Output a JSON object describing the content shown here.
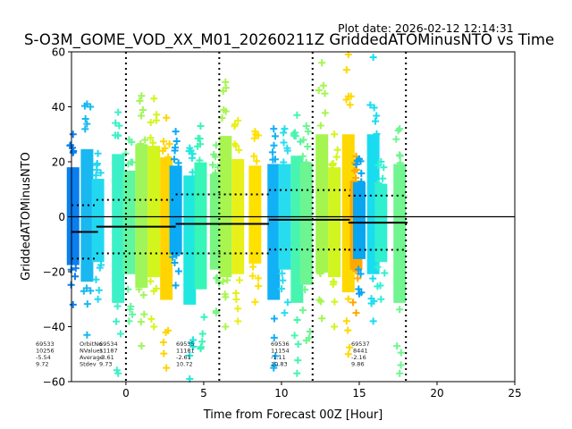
{
  "chart_data": {
    "type": "scatter",
    "title": "S-O3M_GOME_VOD_XX_M01_20260211Z GriddedATOMinusNTO vs Time",
    "plot_date": "Plot date: 2026-02-12 12:14:31",
    "xlabel": "Time from Forecast 00Z [Hour]",
    "ylabel": "GriddedATOMinusNTO",
    "xlim": [
      -3.5,
      25
    ],
    "ylim": [
      -60,
      60
    ],
    "xticks": [
      0,
      5,
      10,
      15,
      20,
      25
    ],
    "xtick_labels": [
      "0",
      "5",
      "10",
      "15",
      "20",
      "25"
    ],
    "yticks": [
      -60,
      -40,
      -20,
      0,
      20,
      40,
      60
    ],
    "ytick_labels": [
      "−60",
      "−40",
      "−20",
      "0",
      "20",
      "40",
      "60"
    ],
    "grid": false,
    "zero_line": 0,
    "vertical_dotted_lines": [
      0,
      6,
      12,
      18
    ],
    "stats_header": [
      "OrbitNo",
      "NValues",
      "Average",
      "Stdev"
    ],
    "orbits": [
      {
        "orbit": "69533",
        "nvalues": "10256",
        "average": "-5.54",
        "stdev": "9.72",
        "mean": -5.54,
        "std": 9.72,
        "x_start": -3.5,
        "x_end": -1.8
      },
      {
        "orbit": "69534",
        "nvalues": "11187",
        "average": "-3.61",
        "stdev": "9.73",
        "mean": -3.61,
        "std": 9.73,
        "x_start": -1.9,
        "x_end": 3.2
      },
      {
        "orbit": "69535",
        "nvalues": "11181",
        "average": "-2.61",
        "stdev": "10.72",
        "mean": -2.61,
        "std": 10.72,
        "x_start": 3.2,
        "x_end": 9.2
      },
      {
        "orbit": "69536",
        "nvalues": "11154",
        "average": "-1.11",
        "stdev": "10.83",
        "mean": -1.11,
        "std": 10.83,
        "x_start": 9.2,
        "x_end": 14.4
      },
      {
        "orbit": "69537",
        "nvalues": "8441",
        "average": "-2.16",
        "stdev": "9.86",
        "mean": -2.16,
        "std": 9.86,
        "x_start": 14.3,
        "x_end": 18.1
      }
    ],
    "scan_bands": [
      {
        "x": -3.4,
        "color": "#0a7ff0",
        "lo": -32,
        "hi": 30
      },
      {
        "x": -2.5,
        "color": "#1ab8f0",
        "lo": -43,
        "hi": 41
      },
      {
        "x": -1.8,
        "color": "#22d8f0",
        "lo": -30,
        "hi": 23
      },
      {
        "x": -0.5,
        "color": "#3cf0c8",
        "lo": -57,
        "hi": 38
      },
      {
        "x": 0.2,
        "color": "#60f5a0",
        "lo": -38,
        "hi": 28
      },
      {
        "x": 1.0,
        "color": "#a0f55a",
        "lo": -47,
        "hi": 44
      },
      {
        "x": 1.8,
        "color": "#d2f51e",
        "lo": -40,
        "hi": 43
      },
      {
        "x": 2.6,
        "color": "#ffd400",
        "lo": -55,
        "hi": 36
      },
      {
        "x": 3.2,
        "color": "#0aaaf5",
        "lo": -25,
        "hi": 31
      },
      {
        "x": 4.1,
        "color": "#20e8e0",
        "lo": -60,
        "hi": 25
      },
      {
        "x": 4.8,
        "color": "#38f5b8",
        "lo": -48,
        "hi": 33
      },
      {
        "x": 5.8,
        "color": "#78f580",
        "lo": -35,
        "hi": 26
      },
      {
        "x": 6.4,
        "color": "#a8f550",
        "lo": -40,
        "hi": 49
      },
      {
        "x": 7.2,
        "color": "#e8f01a",
        "lo": -38,
        "hi": 35
      },
      {
        "x": 8.3,
        "color": "#ffe100",
        "lo": -31,
        "hi": 31
      },
      {
        "x": 9.5,
        "color": "#12b0f5",
        "lo": -55,
        "hi": 32
      },
      {
        "x": 10.2,
        "color": "#28dcf0",
        "lo": -35,
        "hi": 32
      },
      {
        "x": 11.0,
        "color": "#48f5b0",
        "lo": -57,
        "hi": 37
      },
      {
        "x": 11.6,
        "color": "#6cf590",
        "lo": -45,
        "hi": 33
      },
      {
        "x": 12.6,
        "color": "#a5f550",
        "lo": -37,
        "hi": 56
      },
      {
        "x": 13.4,
        "color": "#d0f520",
        "lo": -40,
        "hi": 30
      },
      {
        "x": 14.3,
        "color": "#ffd800",
        "lo": -50,
        "hi": 60
      },
      {
        "x": 14.8,
        "color": "#ffa800",
        "lo": -35,
        "hi": 22
      },
      {
        "x": 15.0,
        "color": "#0aa5f0",
        "lo": -28,
        "hi": 21
      },
      {
        "x": 15.9,
        "color": "#1adcf0",
        "lo": -38,
        "hi": 58
      },
      {
        "x": 16.4,
        "color": "#30f0d0",
        "lo": -30,
        "hi": 20
      },
      {
        "x": 17.6,
        "color": "#70f590",
        "lo": -57,
        "hi": 32
      }
    ]
  }
}
